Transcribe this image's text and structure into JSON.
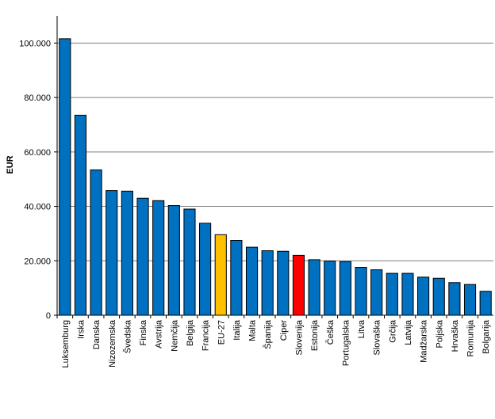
{
  "chart_data": {
    "type": "bar",
    "title": "",
    "xlabel": "",
    "ylabel": "EUR",
    "ylim": [
      0,
      110000
    ],
    "yticks": [
      0,
      20000,
      40000,
      60000,
      80000,
      100000
    ],
    "ytick_labels": [
      "0",
      "20.000",
      "40.000",
      "60.000",
      "80.000",
      "100.000"
    ],
    "grid": true,
    "categories": [
      "Luksemburg",
      "Irska",
      "Danska",
      "Nizozemska",
      "Švedska",
      "Finska",
      "Avstrija",
      "Nemčija",
      "Belgija",
      "Francija",
      "EU-27",
      "Italija",
      "Malta",
      "Španija",
      "Ciper",
      "Slovenija",
      "Estonija",
      "Češka",
      "Portugalska",
      "Litva",
      "Slovaška",
      "Grčija",
      "Latvija",
      "Madžarska",
      "Poljska",
      "Hrvaška",
      "Romunija",
      "Bolgarija"
    ],
    "values": [
      101600,
      73500,
      53400,
      45800,
      45600,
      43000,
      42100,
      40300,
      39000,
      33800,
      29600,
      27500,
      25000,
      23700,
      23500,
      22000,
      20400,
      19900,
      19700,
      17600,
      16700,
      15400,
      15400,
      14000,
      13600,
      12000,
      11300,
      8800
    ],
    "colors": {
      "default": "#0070C0",
      "highlight_eu": "#FFC000",
      "highlight_si": "#FF0000",
      "grid": "#7f7f7f",
      "bar_stroke": "#000000"
    },
    "highlights": {
      "EU-27": "highlight_eu",
      "Slovenija": "highlight_si"
    }
  }
}
